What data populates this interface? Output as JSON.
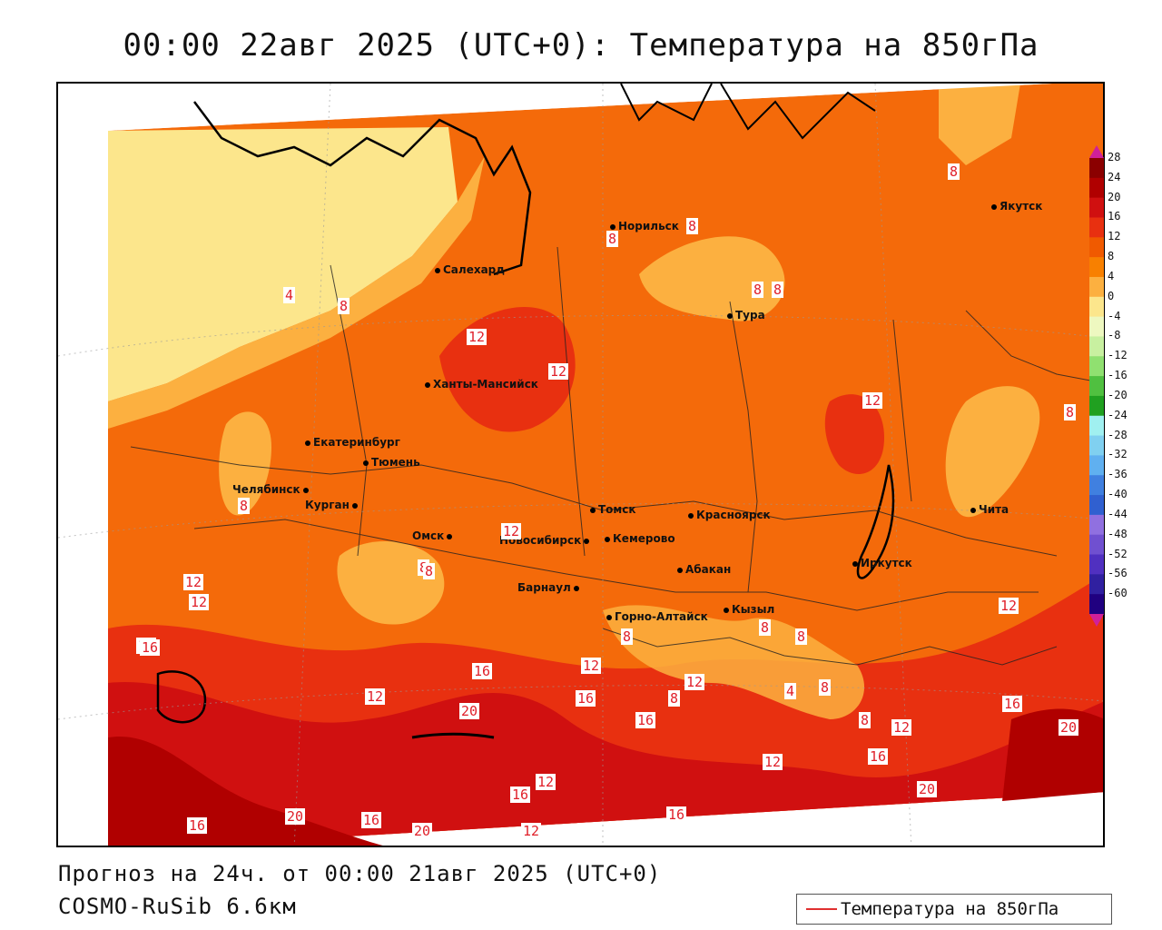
{
  "title": "00:00 22авг 2025 (UTC+0): Температура на 850гПа",
  "footer": {
    "forecast": "Прогноз на 24ч. от 00:00 21авг 2025 (UTC+0)",
    "model": "COSMO-RuSib 6.6км"
  },
  "legend": {
    "label": "Температура на 850гПа",
    "color": "#e03030"
  },
  "colorbar": {
    "ticks": [
      "28",
      "24",
      "20",
      "16",
      "12",
      "8",
      "4",
      "0",
      "-4",
      "-8",
      "-12",
      "-16",
      "-20",
      "-24",
      "-28",
      "-32",
      "-36",
      "-40",
      "-44",
      "-48",
      "-52",
      "-56",
      "-60"
    ],
    "colors": [
      "#8b0000",
      "#b00000",
      "#d01010",
      "#e83010",
      "#f05a00",
      "#f88000",
      "#fcb040",
      "#fce68c",
      "#eef8c0",
      "#c8f0a0",
      "#90e070",
      "#50c040",
      "#20a020",
      "#a0f0f0",
      "#80d0f0",
      "#60b0f0",
      "#4080e0",
      "#3060d0",
      "#9070e0",
      "#7050d0",
      "#5030c0",
      "#3020a0",
      "#200080"
    ]
  },
  "cities": [
    {
      "name": "Якутск"
    },
    {
      "name": "Норильск"
    },
    {
      "name": "Салехард"
    },
    {
      "name": "Тура"
    },
    {
      "name": "Ханты-Мансийск"
    },
    {
      "name": "Екатеринбург"
    },
    {
      "name": "Тюмень"
    },
    {
      "name": "Челябинск"
    },
    {
      "name": "Курган"
    },
    {
      "name": "Омск"
    },
    {
      "name": "Новосибирск"
    },
    {
      "name": "Томск"
    },
    {
      "name": "Красноярск"
    },
    {
      "name": "Кемерово"
    },
    {
      "name": "Абакан"
    },
    {
      "name": "Барнаул"
    },
    {
      "name": "Иркутск"
    },
    {
      "name": "Чита"
    },
    {
      "name": "Кызыл"
    },
    {
      "name": "Горно-Алтайск"
    }
  ],
  "isolabels": [
    "8",
    "8",
    "8",
    "4",
    "8",
    "12",
    "12",
    "12",
    "8",
    "8",
    "8",
    "12",
    "12",
    "12",
    "16",
    "12",
    "16",
    "20",
    "16",
    "16",
    "8",
    "8",
    "12",
    "16",
    "12",
    "16",
    "20",
    "16",
    "12",
    "16",
    "20",
    "12",
    "8",
    "4",
    "8",
    "12",
    "16",
    "20",
    "8",
    "8",
    "8",
    "8",
    "12",
    "12",
    "20",
    "16",
    "16",
    "8"
  ]
}
